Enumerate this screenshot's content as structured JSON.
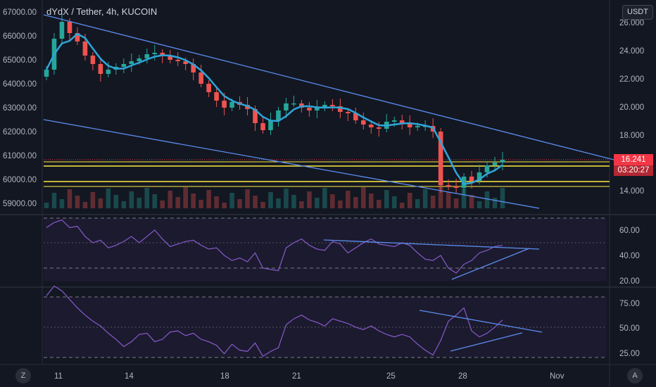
{
  "header": {
    "pair": "dYdX / Tether",
    "interval": "4h",
    "exchange": "KUCOIN",
    "title": "dYdX / Tether, 4h, KUCOIN"
  },
  "currency_button": "USDT",
  "price_tag": {
    "value": "16.241",
    "countdown": "03:20:27",
    "color": "#f23645"
  },
  "left_axis": [
    "67000.00",
    "66000.00",
    "65000.00",
    "64000.00",
    "63000.00",
    "62000.00",
    "61000.00",
    "60000.00",
    "59000.00"
  ],
  "right_axis": [
    "26.000",
    "24.000",
    "22.000",
    "20.000",
    "18.000",
    "14.000"
  ],
  "rsi1_axis": [
    "60.00",
    "40.00",
    "20.00"
  ],
  "rsi2_axis": [
    "75.00",
    "50.00",
    "25.00"
  ],
  "time_axis": [
    "11",
    "14",
    "18",
    "21",
    "25",
    "28",
    "Nov"
  ],
  "corner_left": "Z",
  "corner_right": "A",
  "colors": {
    "up": "#26a69a",
    "down": "#ef5350",
    "ma": "#2fa5d8",
    "trend": "#5b8def",
    "rsi": "#7e57c2",
    "yellow": "#ffeb3b"
  },
  "chart_data": {
    "type": "line",
    "series": [
      {
        "values": [
          22.6,
          24.8,
          26.0,
          25.2,
          24.6,
          23.6,
          23.0,
          22.3,
          22.6,
          22.8,
          23.0,
          23.2,
          23.4,
          23.7,
          23.8,
          23.6,
          23.3,
          23.2,
          23.0,
          22.4,
          21.6,
          21.0,
          20.4,
          19.9,
          20.3,
          20.1,
          19.8,
          18.8,
          18.3,
          19.0,
          19.7,
          20.2,
          20.2,
          19.9,
          19.7,
          19.9,
          20.1,
          20.0,
          19.6,
          19.5,
          19.0,
          18.7,
          18.5,
          18.4,
          18.9,
          19.0,
          18.8,
          18.5,
          18.6,
          18.6,
          18.2,
          14.4,
          14.3,
          14.2,
          15.0,
          14.7,
          15.3,
          15.8,
          16.0,
          16.2
        ]
      },
      {
        "values": [
          62,
          66,
          68,
          62,
          63,
          55,
          50,
          52,
          46,
          48,
          51,
          55,
          50,
          55,
          60,
          53,
          47,
          49,
          51,
          52,
          48,
          45,
          46,
          40,
          36,
          38,
          35,
          42,
          30,
          29,
          28,
          46,
          50,
          53,
          48,
          45,
          44,
          51,
          49,
          42,
          46,
          50,
          53,
          49,
          48,
          47,
          50,
          48,
          42,
          37,
          36,
          40,
          30,
          26,
          33,
          36,
          42,
          44,
          47,
          48
        ]
      },
      {
        "values": [
          76,
          84,
          80,
          73,
          66,
          60,
          55,
          51,
          45,
          40,
          34,
          38,
          44,
          45,
          38,
          40,
          46,
          47,
          43,
          45,
          40,
          38,
          35,
          28,
          36,
          31,
          30,
          37,
          26,
          30,
          33,
          52,
          57,
          60,
          56,
          54,
          51,
          57,
          55,
          53,
          50,
          48,
          51,
          47,
          44,
          42,
          44,
          42,
          36,
          31,
          27,
          39,
          55,
          60,
          66,
          47,
          42,
          45,
          50,
          56
        ]
      }
    ]
  }
}
